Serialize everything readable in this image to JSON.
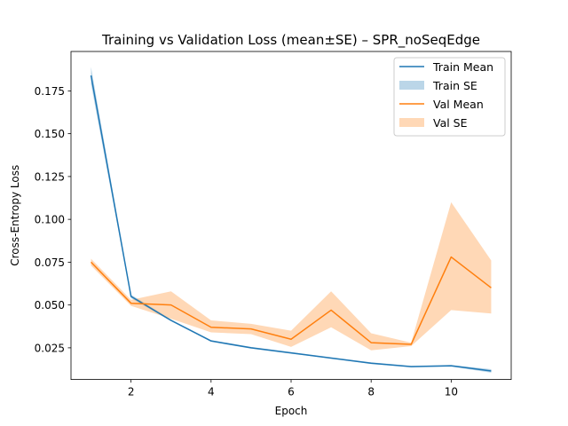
{
  "chart_data": {
    "type": "line",
    "title": "Training vs Validation Loss (mean±SE) – SPR_noSeqEdge",
    "xlabel": "Epoch",
    "ylabel": "Cross-Entropy Loss",
    "xlim": [
      0.5,
      11.5
    ],
    "ylim": [
      0.0065,
      0.198
    ],
    "xticks": [
      2,
      4,
      6,
      8,
      10
    ],
    "yticks": [
      0.025,
      0.05,
      0.075,
      0.1,
      0.125,
      0.15,
      0.175
    ],
    "ytick_labels": [
      "0.025",
      "0.050",
      "0.075",
      "0.100",
      "0.125",
      "0.150",
      "0.175"
    ],
    "grid": false,
    "legend_position": "top-right",
    "x": [
      1,
      2,
      3,
      4,
      5,
      6,
      7,
      8,
      9,
      10,
      11
    ],
    "series": [
      {
        "name": "Train Mean",
        "se_name": "Train SE",
        "color": "#1f77b4",
        "band_color": "#1f77b4",
        "band_alpha": 0.3,
        "values": [
          0.184,
          0.055,
          0.041,
          0.029,
          0.025,
          0.022,
          0.019,
          0.016,
          0.014,
          0.0145,
          0.0115
        ],
        "se_lower": [
          0.179,
          0.054,
          0.0405,
          0.0285,
          0.0245,
          0.0215,
          0.0188,
          0.0155,
          0.0138,
          0.014,
          0.0105
        ],
        "se_upper": [
          0.189,
          0.056,
          0.0415,
          0.0295,
          0.0255,
          0.0225,
          0.0195,
          0.0165,
          0.0145,
          0.015,
          0.0125
        ]
      },
      {
        "name": "Val Mean",
        "se_name": "Val SE",
        "color": "#ff7f0e",
        "band_color": "#ff7f0e",
        "band_alpha": 0.3,
        "values": [
          0.075,
          0.051,
          0.05,
          0.037,
          0.036,
          0.03,
          0.047,
          0.028,
          0.027,
          0.078,
          0.06
        ],
        "se_lower": [
          0.073,
          0.0495,
          0.042,
          0.034,
          0.033,
          0.0255,
          0.037,
          0.0235,
          0.026,
          0.047,
          0.045
        ],
        "se_upper": [
          0.077,
          0.053,
          0.058,
          0.041,
          0.039,
          0.035,
          0.058,
          0.0335,
          0.028,
          0.11,
          0.076
        ]
      }
    ]
  }
}
